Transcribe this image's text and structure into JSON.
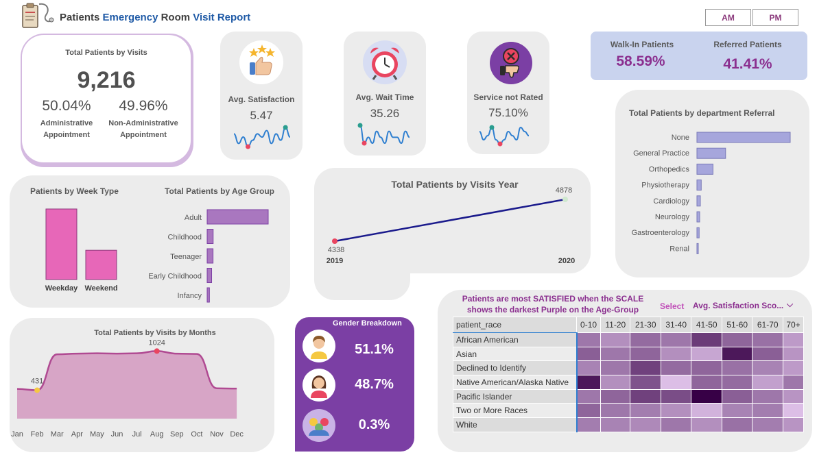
{
  "header": {
    "title_parts": [
      {
        "text": "Patients ",
        "color": "#404040"
      },
      {
        "text": "Emergency ",
        "color": "#1f5aa6"
      },
      {
        "text": "Room ",
        "color": "#404040"
      },
      {
        "text": "Visit Report",
        "color": "#1f5aa6"
      }
    ],
    "logo_icon": "clipboard-stethoscope-icon",
    "toggle": [
      "AM",
      "PM"
    ]
  },
  "colors": {
    "card_bg": "#ececec",
    "purple": "#7b3fa4",
    "pink_bar": "#e767b8",
    "lavender": "#a977bf",
    "bar_blue": "#a6a6dc",
    "line_navy": "#1a1a8c",
    "walkin_bg": "#c9d3ee",
    "value_purple": "#8b2f8f"
  },
  "total_visits": {
    "title": "Total Patients by Visits",
    "value": "9,216",
    "admin_pct": "50.04%",
    "admin_label_1": "Administrative",
    "admin_label_2": "Appointment",
    "nonadmin_pct": "49.96%",
    "nonadmin_label_1": "Non-Administrative",
    "nonadmin_label_2": "Appointment"
  },
  "kpis": [
    {
      "label": "Avg. Satisfaction",
      "value": "5.47",
      "icon": "thumbs-up-stars-icon",
      "spark": [
        6,
        3,
        5,
        2,
        4,
        6,
        5,
        7,
        3,
        6,
        4,
        8,
        5
      ]
    },
    {
      "label": "Avg. Wait Time",
      "value": "35.26",
      "icon": "alarm-clock-icon",
      "spark": [
        7,
        4,
        5,
        4,
        6,
        5,
        4,
        6,
        5,
        5,
        4,
        6,
        5
      ]
    },
    {
      "label": "Service not Rated",
      "value": "75.10%",
      "icon": "thumbs-down-x-icon",
      "spark": [
        5,
        3,
        4,
        6,
        3,
        2,
        3,
        5,
        4,
        3,
        6,
        5,
        4
      ]
    }
  ],
  "walkin": {
    "walkin_label": "Walk-In Patients",
    "walkin_value": "58.59%",
    "referred_label": "Referred Patients",
    "referred_value": "41.41%"
  },
  "department_referral": {
    "title": "Total Patients by department Referral",
    "type": "bar",
    "categories": [
      "None",
      "General Practice",
      "Orthopedics",
      "Physiotherapy",
      "Cardiology",
      "Neurology",
      "Gastroenterology",
      "Renal"
    ],
    "values": [
      5400,
      1660,
      930,
      250,
      200,
      160,
      130,
      30
    ],
    "xlim": [
      0,
      5400
    ]
  },
  "week_type": {
    "title": "Patients by Week Type",
    "type": "bar",
    "categories": [
      "Weekday",
      "Weekend"
    ],
    "values": [
      6500,
      2700
    ],
    "ylim": [
      0,
      6500
    ]
  },
  "age_group": {
    "title": "Total Patients by Age Group",
    "type": "bar",
    "categories": [
      "Adult",
      "Childhood",
      "Teenager",
      "Early Childhood",
      "Infancy"
    ],
    "values": [
      5600,
      550,
      540,
      410,
      210
    ],
    "xlim": [
      0,
      5600
    ]
  },
  "visits_year": {
    "title": "Total Patients by Visits Year",
    "type": "line",
    "x": [
      "2019",
      "2020"
    ],
    "values": [
      4338,
      4878
    ],
    "value_labels": [
      "4338",
      "4878"
    ]
  },
  "visits_months": {
    "title": "Total Patients by Visits by Months",
    "type": "area",
    "x": [
      "Jan",
      "Feb",
      "Mar",
      "Apr",
      "May",
      "Jun",
      "Jul",
      "Aug",
      "Sep",
      "Oct",
      "Nov",
      "Dec"
    ],
    "values": [
      450,
      431,
      975,
      985,
      990,
      985,
      990,
      1024,
      985,
      980,
      460,
      455
    ],
    "max_label": "1024",
    "min_label": "431",
    "ylim": [
      0,
      1080
    ]
  },
  "gender": {
    "title": "Gender Breakdown",
    "items": [
      {
        "icon": "male-avatar-icon",
        "value": "51.1%"
      },
      {
        "icon": "female-avatar-icon",
        "value": "48.7%"
      },
      {
        "icon": "group-avatar-icon",
        "value": "0.3%"
      }
    ]
  },
  "heatmap": {
    "title_1": "Patients are most SATISFIED when the SCALE",
    "title_2": "shows the darkest Purple on the Age-Group",
    "select_label": "Select",
    "dropdown_value": "Avg. Satisfaction Sco...",
    "row_header": "patient_race",
    "columns": [
      "0-10",
      "11-20",
      "21-30",
      "31-40",
      "41-50",
      "51-60",
      "61-70",
      "70+"
    ],
    "rows": [
      "African American",
      "Asian",
      "Declined to Identify",
      "Native American/Alaska Native",
      "Pacific Islander",
      "Two or More Races",
      "White"
    ],
    "values": [
      [
        5.6,
        5.2,
        5.8,
        5.6,
        6.6,
        5.9,
        5.7,
        5.0
      ],
      [
        6.0,
        5.6,
        5.9,
        5.2,
        4.8,
        7.2,
        6.0,
        5.1
      ],
      [
        5.4,
        5.6,
        6.5,
        5.8,
        5.9,
        5.7,
        5.4,
        5.0
      ],
      [
        7.2,
        5.2,
        6.2,
        4.4,
        5.9,
        5.8,
        4.9,
        5.6
      ],
      [
        5.6,
        5.9,
        6.5,
        6.3,
        7.6,
        6.0,
        5.6,
        5.1
      ],
      [
        5.9,
        5.6,
        5.5,
        5.2,
        4.6,
        5.4,
        5.5,
        4.4
      ],
      [
        5.5,
        5.4,
        5.3,
        5.6,
        5.2,
        5.7,
        5.5,
        5.1
      ]
    ]
  }
}
